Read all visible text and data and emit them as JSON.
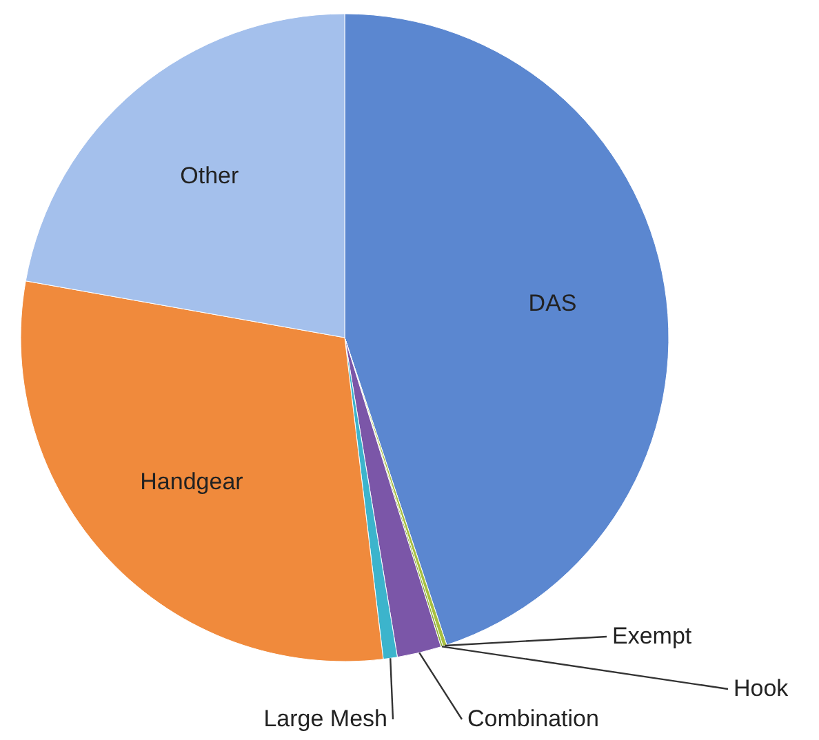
{
  "chart_data": {
    "type": "pie",
    "categories": [
      "DAS",
      "Exempt",
      "Hook",
      "Combination",
      "Large Mesh",
      "Handgear",
      "Other"
    ],
    "values": [
      44.9,
      0.2,
      0.1,
      2.2,
      0.7,
      29.7,
      22.2
    ],
    "colors": [
      "#5b87d0",
      "#a8c040",
      "#8fae3c",
      "#7b56a8",
      "#3cb4cc",
      "#f08a3c",
      "#a4c0ec"
    ]
  }
}
